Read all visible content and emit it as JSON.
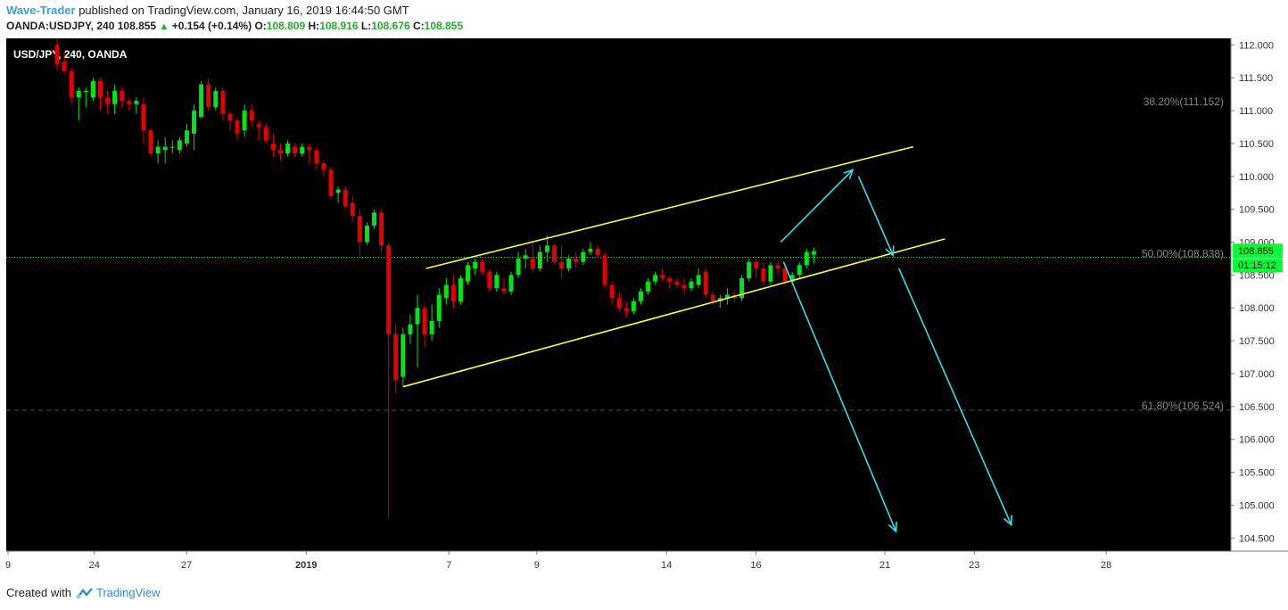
{
  "header": {
    "author": "Wave-Trader",
    "published_text": "published on TradingView.com, January 16, 2019 16:44:50 GMT",
    "symbol": "OANDA:USDJPY, 240",
    "last": "108.855",
    "change": "+0.154 (+0.14%)",
    "o_label": "O:",
    "o_val": "108.809",
    "h_label": "H:",
    "h_val": "108.916",
    "l_label": "L:",
    "l_val": "108.676",
    "c_label": "C:",
    "c_val": "108.855"
  },
  "footer": {
    "created_with": "Created with",
    "brand": "TradingView"
  },
  "colors": {
    "background": "#000000",
    "up": "#00e515",
    "down": "#e50000",
    "channel": "#ffff33",
    "arrow": "#33ddee",
    "price_line": "#00ff33",
    "fib_text": "#888888"
  },
  "chart_data": {
    "type": "candlestick",
    "title": "USD/JPY, 240, OANDA",
    "ylim": [
      104.3,
      112.1
    ],
    "y_ticks": [
      "104.500",
      "105.000",
      "105.500",
      "106.000",
      "106.500",
      "107.000",
      "107.500",
      "108.000",
      "108.500",
      "109.000",
      "109.500",
      "110.000",
      "110.500",
      "111.000",
      "111.500",
      "112.000"
    ],
    "x_ticks": [
      "9",
      "24",
      "27",
      "2019",
      "7",
      "9",
      "14",
      "16",
      "21",
      "23",
      "28"
    ],
    "fib_levels": [
      {
        "label": "38.20%(111.152)",
        "price": 111.152
      },
      {
        "label": "50.00%(108.838)",
        "price": 108.838
      },
      {
        "label": "61.80%(106.524)",
        "price": 106.524
      }
    ],
    "last_price": "108.855",
    "countdown": "01:15:12",
    "channel": [
      {
        "line": "upper",
        "from": [
          12.8,
          108.6
        ],
        "to": [
          29.7,
          110.45
        ]
      },
      {
        "line": "lower",
        "from": [
          12.0,
          106.8
        ],
        "to": [
          30.8,
          109.05
        ]
      }
    ],
    "projection_arrows": [
      {
        "from": [
          25.1,
          109.0
        ],
        "to": [
          27.6,
          110.1
        ]
      },
      {
        "from": [
          27.8,
          110.0
        ],
        "to": [
          29.0,
          108.8
        ]
      },
      {
        "from": [
          25.2,
          108.7
        ],
        "to": [
          29.1,
          104.6
        ]
      },
      {
        "from": [
          29.2,
          108.6
        ],
        "to": [
          33.1,
          104.7
        ]
      }
    ],
    "candles": [
      {
        "o": 112.0,
        "h": 112.1,
        "l": 111.6,
        "c": 111.7
      },
      {
        "o": 111.75,
        "h": 111.9,
        "l": 111.55,
        "c": 111.6
      },
      {
        "o": 111.6,
        "h": 111.65,
        "l": 111.1,
        "c": 111.2
      },
      {
        "o": 111.2,
        "h": 111.35,
        "l": 110.85,
        "c": 111.3
      },
      {
        "o": 111.3,
        "h": 111.35,
        "l": 111.05,
        "c": 111.3
      },
      {
        "o": 111.2,
        "h": 111.5,
        "l": 111.15,
        "c": 111.45
      },
      {
        "o": 111.45,
        "h": 111.5,
        "l": 111.0,
        "c": 111.2
      },
      {
        "o": 111.2,
        "h": 111.3,
        "l": 110.95,
        "c": 111.1
      },
      {
        "o": 111.1,
        "h": 111.4,
        "l": 110.95,
        "c": 111.3
      },
      {
        "o": 111.3,
        "h": 111.35,
        "l": 111.05,
        "c": 111.15
      },
      {
        "o": 111.15,
        "h": 111.2,
        "l": 111.0,
        "c": 111.1
      },
      {
        "o": 111.1,
        "h": 111.2,
        "l": 110.95,
        "c": 111.15
      },
      {
        "o": 111.1,
        "h": 111.2,
        "l": 110.5,
        "c": 110.7
      },
      {
        "o": 110.7,
        "h": 110.75,
        "l": 110.3,
        "c": 110.35
      },
      {
        "o": 110.35,
        "h": 110.55,
        "l": 110.2,
        "c": 110.45
      },
      {
        "o": 110.4,
        "h": 110.6,
        "l": 110.2,
        "c": 110.45
      },
      {
        "o": 110.45,
        "h": 110.55,
        "l": 110.35,
        "c": 110.45
      },
      {
        "o": 110.4,
        "h": 110.6,
        "l": 110.35,
        "c": 110.55
      },
      {
        "o": 110.5,
        "h": 110.8,
        "l": 110.45,
        "c": 110.7
      },
      {
        "o": 110.65,
        "h": 111.1,
        "l": 110.4,
        "c": 111.0
      },
      {
        "o": 110.9,
        "h": 111.45,
        "l": 110.9,
        "c": 111.4
      },
      {
        "o": 111.4,
        "h": 111.5,
        "l": 111.0,
        "c": 111.05
      },
      {
        "o": 111.05,
        "h": 111.35,
        "l": 111.0,
        "c": 111.3
      },
      {
        "o": 111.3,
        "h": 111.35,
        "l": 110.85,
        "c": 110.95
      },
      {
        "o": 110.95,
        "h": 111.0,
        "l": 110.7,
        "c": 110.85
      },
      {
        "o": 110.85,
        "h": 110.9,
        "l": 110.55,
        "c": 110.65
      },
      {
        "o": 110.7,
        "h": 111.1,
        "l": 110.6,
        "c": 111.0
      },
      {
        "o": 111.0,
        "h": 111.1,
        "l": 110.75,
        "c": 110.85
      },
      {
        "o": 110.8,
        "h": 110.85,
        "l": 110.55,
        "c": 110.75
      },
      {
        "o": 110.75,
        "h": 110.8,
        "l": 110.5,
        "c": 110.55
      },
      {
        "o": 110.5,
        "h": 110.65,
        "l": 110.3,
        "c": 110.4
      },
      {
        "o": 110.4,
        "h": 110.5,
        "l": 110.25,
        "c": 110.35
      },
      {
        "o": 110.35,
        "h": 110.55,
        "l": 110.3,
        "c": 110.5
      },
      {
        "o": 110.45,
        "h": 110.5,
        "l": 110.3,
        "c": 110.35
      },
      {
        "o": 110.35,
        "h": 110.5,
        "l": 110.3,
        "c": 110.45
      },
      {
        "o": 110.45,
        "h": 110.5,
        "l": 110.2,
        "c": 110.4
      },
      {
        "o": 110.4,
        "h": 110.45,
        "l": 110.1,
        "c": 110.2
      },
      {
        "o": 110.2,
        "h": 110.25,
        "l": 110.0,
        "c": 110.1
      },
      {
        "o": 110.1,
        "h": 110.15,
        "l": 109.65,
        "c": 109.7
      },
      {
        "o": 109.75,
        "h": 109.85,
        "l": 109.6,
        "c": 109.8
      },
      {
        "o": 109.8,
        "h": 109.85,
        "l": 109.5,
        "c": 109.55
      },
      {
        "o": 109.6,
        "h": 109.7,
        "l": 109.3,
        "c": 109.4
      },
      {
        "o": 109.4,
        "h": 109.5,
        "l": 108.8,
        "c": 109.0
      },
      {
        "o": 109.0,
        "h": 109.3,
        "l": 108.95,
        "c": 109.25
      },
      {
        "o": 109.25,
        "h": 109.5,
        "l": 109.2,
        "c": 109.45
      },
      {
        "o": 109.45,
        "h": 109.5,
        "l": 108.85,
        "c": 108.95
      },
      {
        "o": 108.95,
        "h": 109.0,
        "l": 104.8,
        "c": 107.6
      },
      {
        "o": 107.6,
        "h": 107.75,
        "l": 106.7,
        "c": 106.9
      },
      {
        "o": 106.95,
        "h": 107.7,
        "l": 106.8,
        "c": 107.6
      },
      {
        "o": 107.6,
        "h": 107.9,
        "l": 107.45,
        "c": 107.75
      },
      {
        "o": 107.75,
        "h": 108.2,
        "l": 107.1,
        "c": 108.0
      },
      {
        "o": 108.0,
        "h": 108.05,
        "l": 107.4,
        "c": 107.6
      },
      {
        "o": 107.6,
        "h": 108.05,
        "l": 107.5,
        "c": 107.8
      },
      {
        "o": 107.8,
        "h": 108.3,
        "l": 107.7,
        "c": 108.2
      },
      {
        "o": 108.15,
        "h": 108.45,
        "l": 108.05,
        "c": 108.35
      },
      {
        "o": 108.35,
        "h": 108.5,
        "l": 108.0,
        "c": 108.1
      },
      {
        "o": 108.1,
        "h": 108.5,
        "l": 108.05,
        "c": 108.45
      },
      {
        "o": 108.4,
        "h": 108.7,
        "l": 108.35,
        "c": 108.65
      },
      {
        "o": 108.6,
        "h": 108.75,
        "l": 108.5,
        "c": 108.7
      },
      {
        "o": 108.7,
        "h": 108.75,
        "l": 108.5,
        "c": 108.55
      },
      {
        "o": 108.55,
        "h": 108.6,
        "l": 108.25,
        "c": 108.3
      },
      {
        "o": 108.3,
        "h": 108.55,
        "l": 108.25,
        "c": 108.5
      },
      {
        "o": 108.3,
        "h": 108.45,
        "l": 108.2,
        "c": 108.25
      },
      {
        "o": 108.25,
        "h": 108.55,
        "l": 108.2,
        "c": 108.5
      },
      {
        "o": 108.5,
        "h": 108.85,
        "l": 108.45,
        "c": 108.75
      },
      {
        "o": 108.75,
        "h": 108.9,
        "l": 108.6,
        "c": 108.8
      },
      {
        "o": 108.75,
        "h": 109.0,
        "l": 108.55,
        "c": 108.6
      },
      {
        "o": 108.6,
        "h": 108.95,
        "l": 108.55,
        "c": 108.85
      },
      {
        "o": 108.85,
        "h": 109.1,
        "l": 108.7,
        "c": 108.95
      },
      {
        "o": 108.95,
        "h": 108.98,
        "l": 108.65,
        "c": 108.7
      },
      {
        "o": 108.7,
        "h": 108.95,
        "l": 108.45,
        "c": 108.6
      },
      {
        "o": 108.6,
        "h": 108.8,
        "l": 108.55,
        "c": 108.75
      },
      {
        "o": 108.75,
        "h": 108.85,
        "l": 108.6,
        "c": 108.7
      },
      {
        "o": 108.7,
        "h": 108.9,
        "l": 108.65,
        "c": 108.85
      },
      {
        "o": 108.85,
        "h": 109.0,
        "l": 108.8,
        "c": 108.9
      },
      {
        "o": 108.9,
        "h": 108.95,
        "l": 108.75,
        "c": 108.8
      },
      {
        "o": 108.8,
        "h": 108.85,
        "l": 108.3,
        "c": 108.35
      },
      {
        "o": 108.35,
        "h": 108.4,
        "l": 108.05,
        "c": 108.15
      },
      {
        "o": 108.15,
        "h": 108.25,
        "l": 107.95,
        "c": 108.0
      },
      {
        "o": 108.0,
        "h": 108.1,
        "l": 107.85,
        "c": 107.95
      },
      {
        "o": 107.95,
        "h": 108.15,
        "l": 107.9,
        "c": 108.1
      },
      {
        "o": 108.1,
        "h": 108.3,
        "l": 108.05,
        "c": 108.25
      },
      {
        "o": 108.25,
        "h": 108.45,
        "l": 108.2,
        "c": 108.4
      },
      {
        "o": 108.4,
        "h": 108.55,
        "l": 108.35,
        "c": 108.5
      },
      {
        "o": 108.5,
        "h": 108.6,
        "l": 108.4,
        "c": 108.45
      },
      {
        "o": 108.45,
        "h": 108.5,
        "l": 108.3,
        "c": 108.4
      },
      {
        "o": 108.4,
        "h": 108.45,
        "l": 108.3,
        "c": 108.35
      },
      {
        "o": 108.35,
        "h": 108.45,
        "l": 108.2,
        "c": 108.3
      },
      {
        "o": 108.3,
        "h": 108.45,
        "l": 108.25,
        "c": 108.4
      },
      {
        "o": 108.35,
        "h": 108.6,
        "l": 108.3,
        "c": 108.5
      },
      {
        "o": 108.55,
        "h": 108.6,
        "l": 108.15,
        "c": 108.2
      },
      {
        "o": 108.2,
        "h": 108.25,
        "l": 108.05,
        "c": 108.1
      },
      {
        "o": 108.1,
        "h": 108.2,
        "l": 108.0,
        "c": 108.15
      },
      {
        "o": 108.15,
        "h": 108.3,
        "l": 108.05,
        "c": 108.2
      },
      {
        "o": 108.2,
        "h": 108.25,
        "l": 108.1,
        "c": 108.15
      },
      {
        "o": 108.15,
        "h": 108.5,
        "l": 108.1,
        "c": 108.45
      },
      {
        "o": 108.45,
        "h": 108.75,
        "l": 108.4,
        "c": 108.7
      },
      {
        "o": 108.7,
        "h": 108.75,
        "l": 108.45,
        "c": 108.6
      },
      {
        "o": 108.6,
        "h": 108.7,
        "l": 108.35,
        "c": 108.4
      },
      {
        "o": 108.4,
        "h": 108.7,
        "l": 108.35,
        "c": 108.65
      },
      {
        "o": 108.65,
        "h": 108.7,
        "l": 108.5,
        "c": 108.6
      },
      {
        "o": 108.6,
        "h": 108.65,
        "l": 108.35,
        "c": 108.4
      },
      {
        "o": 108.4,
        "h": 108.55,
        "l": 108.35,
        "c": 108.5
      },
      {
        "o": 108.5,
        "h": 108.7,
        "l": 108.45,
        "c": 108.65
      },
      {
        "o": 108.65,
        "h": 108.9,
        "l": 108.6,
        "c": 108.85
      },
      {
        "o": 108.81,
        "h": 108.92,
        "l": 108.68,
        "c": 108.86
      }
    ]
  }
}
